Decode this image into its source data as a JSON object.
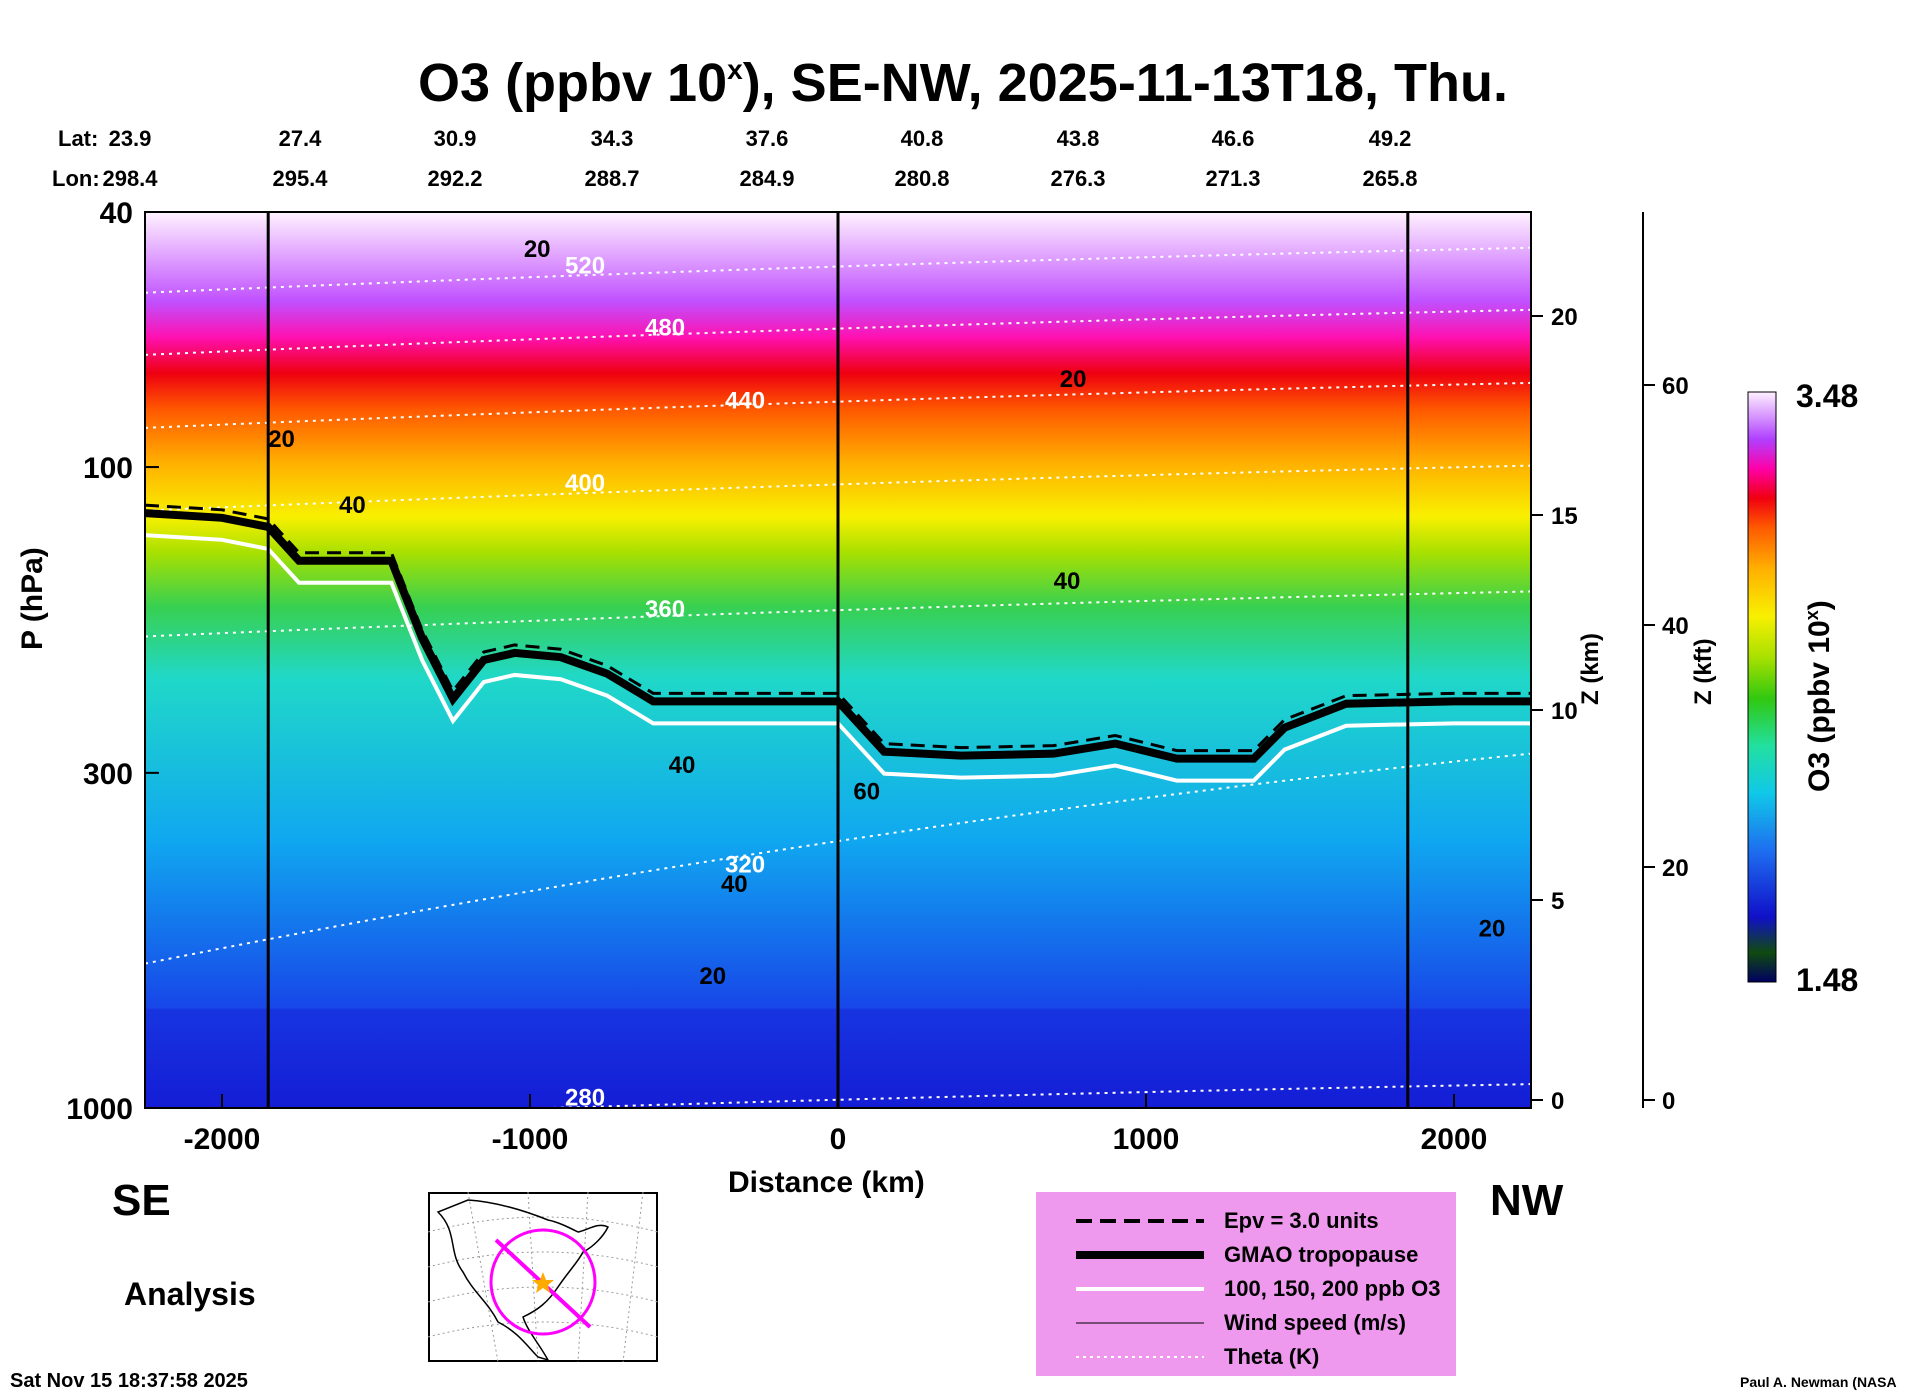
{
  "title": {
    "main": "O3 (ppbv 10",
    "sup": "x",
    "rest": "), SE-NW, 2025-11-13T18, Thu."
  },
  "header": {
    "lat_label": "Lat:",
    "lon_label": "Lon:",
    "lat": [
      "23.9",
      "27.4",
      "30.9",
      "34.3",
      "37.6",
      "40.8",
      "43.8",
      "46.6",
      "49.2"
    ],
    "lon": [
      "298.4",
      "295.4",
      "292.2",
      "288.7",
      "284.9",
      "280.8",
      "276.3",
      "271.3",
      "265.8"
    ]
  },
  "labels": {
    "se": "SE",
    "nw": "NW",
    "analysis": "Analysis",
    "timestamp": "Sat Nov 15 18:37:58 2025",
    "credit": "Paul A. Newman (NASA"
  },
  "legend": {
    "items": [
      {
        "style": "dashed",
        "label": "Epv = 3.0 units"
      },
      {
        "style": "thick",
        "label": "GMAO tropopause"
      },
      {
        "style": "white",
        "label": "100, 150, 200 ppb O3"
      },
      {
        "style": "thin",
        "label": "Wind speed (m/s)"
      },
      {
        "style": "dotted",
        "label": "Theta (K)"
      }
    ],
    "bg_color": "#ee99ee"
  },
  "colorbar": {
    "max_label": "3.48",
    "min_label": "1.48",
    "title": "O3 (ppbv 10",
    "title_sup": "x",
    "title_end": ")"
  },
  "chart_data": {
    "type": "heatmap",
    "xlabel": "Distance (km)",
    "ylabel": "P (hPa)",
    "y2label": "Z (km)",
    "y3label": "Z (kft)",
    "xlim": [
      -2250,
      2250
    ],
    "ylim": [
      1000,
      40
    ],
    "y_scale": "log",
    "x_ticks": [
      -2000,
      -1000,
      0,
      1000,
      2000
    ],
    "x_tick_labels": [
      "-2000",
      "-1000",
      "0",
      "1000",
      "2000"
    ],
    "y_ticks": [
      1000,
      300,
      100,
      40
    ],
    "y_tick_labels": [
      "1000",
      "300",
      "100",
      "40"
    ],
    "z_km_ticks": [
      "0",
      "5",
      "10",
      "15",
      "20"
    ],
    "z_kft_ticks": [
      "0",
      "20",
      "40",
      "60"
    ],
    "colorbar_range": [
      1.48,
      3.48
    ],
    "tropopause_hpa": [
      [
        -2250,
        118
      ],
      [
        -2000,
        120
      ],
      [
        -1850,
        124
      ],
      [
        -1750,
        140
      ],
      [
        -1450,
        140
      ],
      [
        -1350,
        185
      ],
      [
        -1250,
        230
      ],
      [
        -1150,
        200
      ],
      [
        -1050,
        195
      ],
      [
        -900,
        198
      ],
      [
        -750,
        210
      ],
      [
        -600,
        232
      ],
      [
        -400,
        232
      ],
      [
        -200,
        232
      ],
      [
        0,
        232
      ],
      [
        150,
        278
      ],
      [
        400,
        282
      ],
      [
        700,
        280
      ],
      [
        900,
        270
      ],
      [
        1100,
        285
      ],
      [
        1350,
        285
      ],
      [
        1450,
        255
      ],
      [
        1650,
        234
      ],
      [
        2000,
        232
      ],
      [
        2250,
        232
      ]
    ],
    "theta_contours": [
      {
        "label": "520",
        "hpa_at_0": 48
      },
      {
        "label": "480",
        "hpa_at_0": 60
      },
      {
        "label": "440",
        "hpa_at_0": 78
      },
      {
        "label": "400",
        "hpa_at_0": 105
      },
      {
        "label": "360",
        "hpa_at_0": 165
      },
      {
        "label": "320",
        "hpa_at_0": 360
      },
      {
        "label": "280",
        "hpa_at_0": 960
      }
    ],
    "wind_labels": [
      "20",
      "40",
      "60"
    ]
  }
}
